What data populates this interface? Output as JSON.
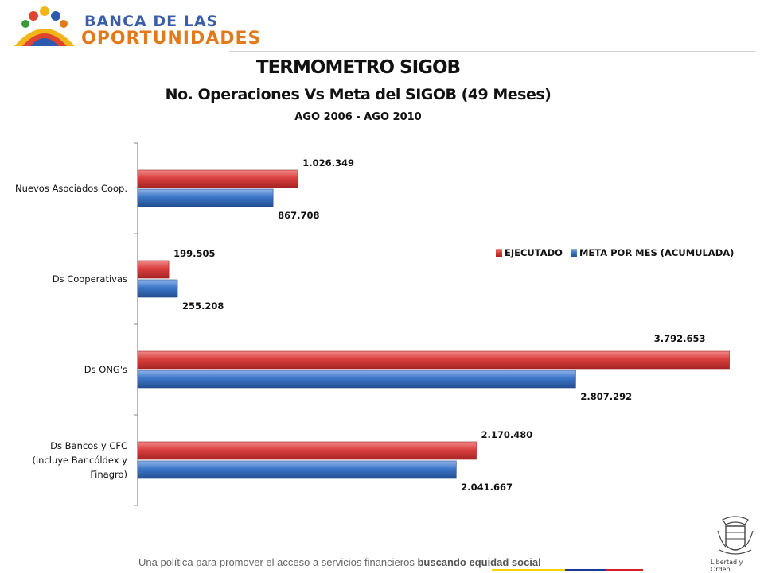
{
  "header": {
    "logo_line1": "BANCA DE LAS",
    "logo_line2": "OPORTUNIDADES"
  },
  "chart_data": {
    "type": "bar",
    "orientation": "horizontal",
    "title": "TERMOMETRO SIGOB",
    "subtitle": "No. Operaciones Vs Meta del SIGOB (49 Meses)",
    "period": "AGO 2006 -  AGO 2010",
    "categories": [
      "Nuevos Asociados  Coop.",
      "Ds Cooperativas",
      "Ds ONG's",
      "Ds Bancos y CFC (incluye Bancóldex y Finagro)"
    ],
    "category_lines": [
      [
        "Nuevos Asociados  Coop."
      ],
      [
        "Ds Cooperativas"
      ],
      [
        "Ds ONG's"
      ],
      [
        "Ds Bancos y CFC",
        "(incluye Bancóldex  y",
        "Finagro)"
      ]
    ],
    "series": [
      {
        "name": "EJECUTADO",
        "color": "#d9403f",
        "values": [
          1026349,
          199505,
          3792653,
          2170480
        ],
        "labels": [
          "1.026.349",
          "199.505",
          "3.792.653",
          "2.170.480"
        ]
      },
      {
        "name": "META POR MES (ACUMULADA)",
        "color": "#3d76c9",
        "values": [
          867708,
          255208,
          2807292,
          2041667
        ],
        "labels": [
          "867.708",
          "255.208",
          "2.807.292",
          "2.041.667"
        ]
      }
    ],
    "xlim": [
      0,
      3800000
    ],
    "legend_position": "right-middle",
    "grid": false
  },
  "footer": {
    "text_plain": "Una política para promover el acceso a servicios financieros ",
    "text_bold": "buscando equidad social"
  },
  "emblem": {
    "caption": "Libertad y Orden"
  },
  "colors": {
    "flag_yellow": "#f6d200",
    "flag_blue": "#1d3a9b",
    "flag_red": "#d81f26"
  }
}
